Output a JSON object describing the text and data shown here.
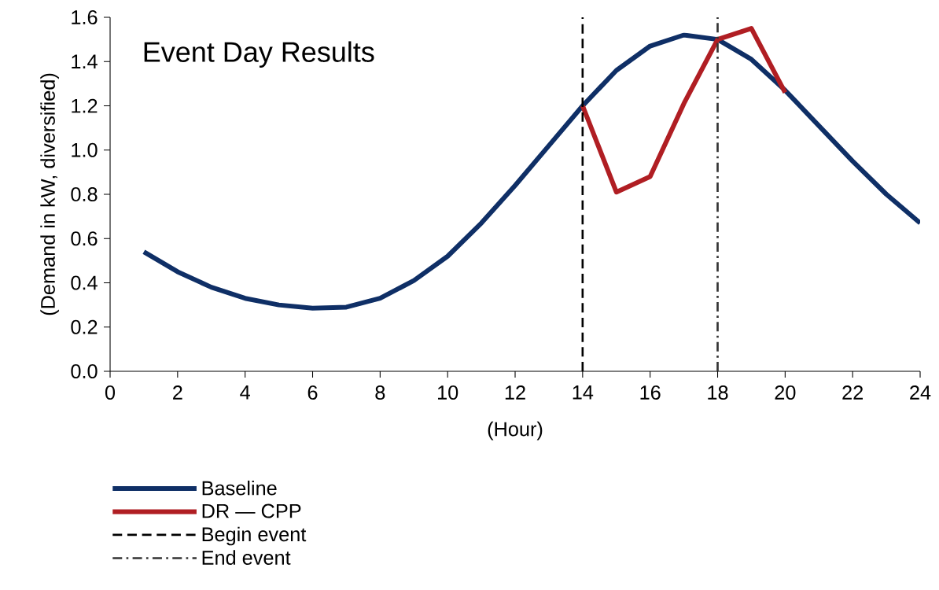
{
  "chart_data": {
    "type": "line",
    "title": "Event Day Results",
    "xlabel": "(Hour)",
    "ylabel": "(Demand in kW, diversified)",
    "x": [
      1,
      2,
      3,
      4,
      5,
      6,
      7,
      8,
      9,
      10,
      11,
      12,
      13,
      14,
      15,
      16,
      17,
      18,
      19,
      20,
      21,
      22,
      23,
      24
    ],
    "series": [
      {
        "name": "Baseline",
        "color": "#0f2f66",
        "values": [
          0.54,
          0.45,
          0.38,
          0.33,
          0.3,
          0.285,
          0.29,
          0.33,
          0.41,
          0.52,
          0.67,
          0.84,
          1.02,
          1.2,
          1.36,
          1.47,
          1.52,
          1.5,
          1.41,
          1.27,
          1.11,
          0.95,
          0.8,
          0.67
        ]
      },
      {
        "name": "DR — CPP",
        "color": "#b01e23",
        "x": [
          14,
          15,
          16,
          17,
          18,
          19,
          20
        ],
        "values": [
          1.2,
          0.81,
          0.88,
          1.21,
          1.5,
          1.55,
          1.26
        ]
      }
    ],
    "ref_lines": [
      {
        "axis": "x",
        "value": 14,
        "label": "Begin event",
        "color": "#000000",
        "line_style": "dashed"
      },
      {
        "axis": "x",
        "value": 18,
        "label": "End event",
        "color": "#333333",
        "line_style": "dashdot"
      }
    ],
    "xlim": [
      0,
      24
    ],
    "ylim": [
      0,
      1.6
    ],
    "xticks": [
      0,
      2,
      4,
      6,
      8,
      10,
      12,
      14,
      16,
      18,
      20,
      22,
      24
    ],
    "yticks": [
      {
        "value": 0,
        "label": "0.0"
      },
      0.2,
      0.4,
      0.6,
      0.8,
      {
        "value": 1,
        "label": "1.0"
      },
      1.2,
      1.4,
      1.6
    ],
    "grid": false,
    "legend": "bottom"
  }
}
